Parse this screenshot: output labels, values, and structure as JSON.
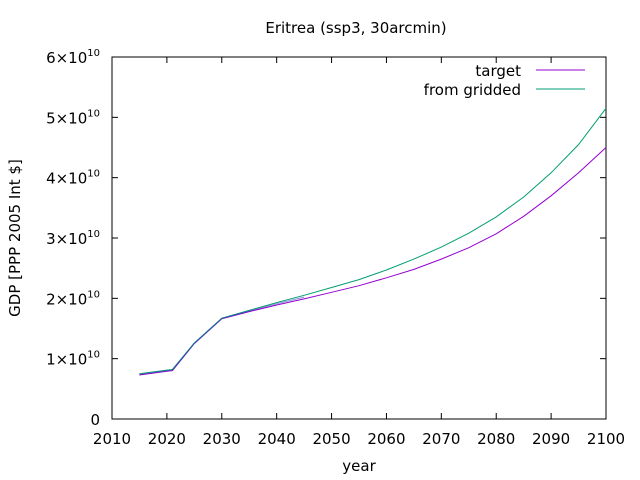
{
  "chart_data": {
    "type": "line",
    "title": "Eritrea (ssp3, 30arcmin)",
    "xlabel": "year",
    "ylabel": "GDP [PPP 2005 Int $]",
    "xlim": [
      2010,
      2100
    ],
    "ylim": [
      0,
      60000000000
    ],
    "grid": false,
    "legend_position": "top-right",
    "x_ticks": [
      {
        "value": 2010,
        "label": "2010"
      },
      {
        "value": 2020,
        "label": "2020"
      },
      {
        "value": 2030,
        "label": "2030"
      },
      {
        "value": 2040,
        "label": "2040"
      },
      {
        "value": 2050,
        "label": "2050"
      },
      {
        "value": 2060,
        "label": "2060"
      },
      {
        "value": 2070,
        "label": "2070"
      },
      {
        "value": 2080,
        "label": "2080"
      },
      {
        "value": 2090,
        "label": "2090"
      },
      {
        "value": 2100,
        "label": "2100"
      }
    ],
    "y_ticks": [
      {
        "value": 0,
        "mantissa": "0",
        "exp": ""
      },
      {
        "value": 10000000000,
        "mantissa": "1×10",
        "exp": "10"
      },
      {
        "value": 20000000000,
        "mantissa": "2×10",
        "exp": "10"
      },
      {
        "value": 30000000000,
        "mantissa": "3×10",
        "exp": "10"
      },
      {
        "value": 40000000000,
        "mantissa": "4×10",
        "exp": "10"
      },
      {
        "value": 50000000000,
        "mantissa": "5×10",
        "exp": "10"
      },
      {
        "value": 60000000000,
        "mantissa": "6×10",
        "exp": "10"
      }
    ],
    "series": [
      {
        "name": "target",
        "color": "#9400d3",
        "x": [
          2015,
          2020,
          2021,
          2025,
          2030,
          2035,
          2040,
          2045,
          2050,
          2055,
          2060,
          2065,
          2070,
          2075,
          2080,
          2085,
          2090,
          2095,
          2100
        ],
        "y": [
          7300000000,
          7900000000,
          8000000000,
          12500000000,
          16600000000,
          17800000000,
          18900000000,
          19900000000,
          21000000000,
          22100000000,
          23400000000,
          24800000000,
          26500000000,
          28400000000,
          30700000000,
          33600000000,
          37000000000,
          40800000000,
          45000000000
        ]
      },
      {
        "name": "from gridded",
        "color": "#009e73",
        "x": [
          2015,
          2020,
          2021,
          2025,
          2030,
          2035,
          2040,
          2045,
          2050,
          2055,
          2060,
          2065,
          2070,
          2075,
          2080,
          2085,
          2090,
          2095,
          2100
        ],
        "y": [
          7500000000,
          8100000000,
          8200000000,
          12600000000,
          16700000000,
          18000000000,
          19300000000,
          20500000000,
          21800000000,
          23100000000,
          24700000000,
          26500000000,
          28500000000,
          30800000000,
          33500000000,
          36800000000,
          40800000000,
          45500000000,
          51500000000
        ]
      }
    ]
  }
}
